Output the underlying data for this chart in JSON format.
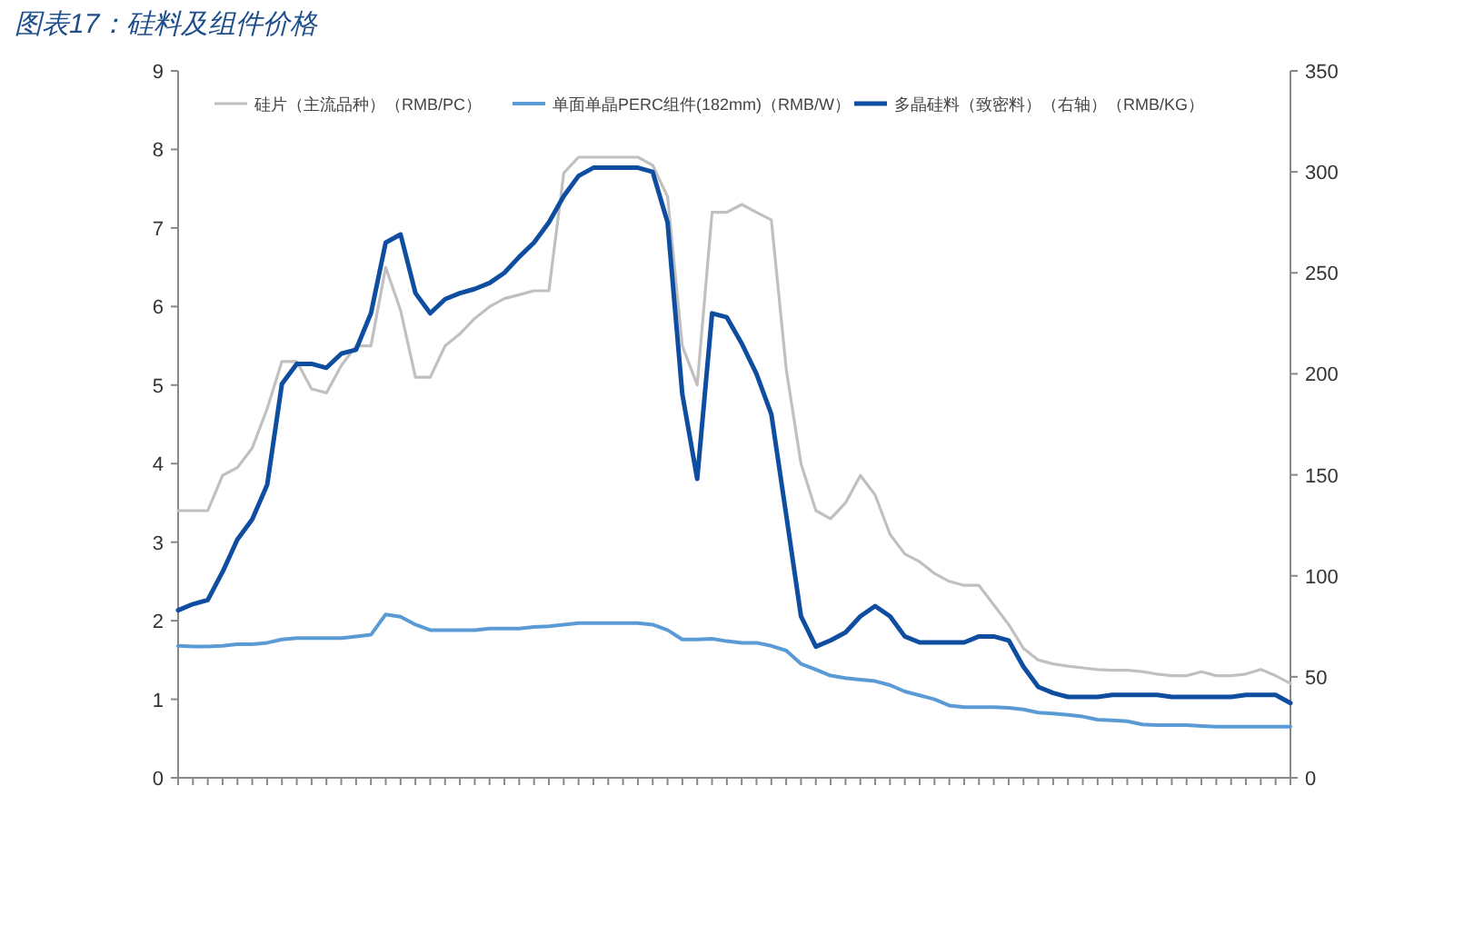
{
  "chart_data": {
    "type": "line",
    "title": "图表17：硅料及组件价格",
    "categories": [
      null,
      null,
      null,
      null,
      null,
      null,
      null,
      null,
      null,
      null,
      null,
      null,
      null,
      null,
      null,
      null,
      null,
      null,
      null,
      null,
      null,
      null,
      null,
      null,
      null,
      null,
      null,
      null,
      null,
      null,
      null,
      null,
      null,
      null,
      null,
      null,
      null,
      null,
      null,
      null,
      null,
      null,
      null,
      null,
      null,
      null,
      null,
      null,
      null,
      null,
      null,
      null,
      null,
      null,
      null,
      null,
      null,
      null,
      null,
      null,
      null,
      null,
      null,
      null,
      null,
      null,
      null,
      null,
      null,
      null,
      null,
      null,
      null,
      null,
      null,
      null
    ],
    "series": [
      {
        "name": "硅片（主流品种）（RMB/PC）",
        "color": "#c0c0c0",
        "values": [
          3.4,
          3.4,
          3.4,
          3.85,
          3.95,
          4.2,
          4.7,
          5.3,
          5.3,
          4.95,
          4.9,
          5.25,
          5.5,
          5.5,
          6.5,
          5.95,
          5.1,
          5.1,
          5.5,
          5.65,
          5.85,
          6.0,
          6.1,
          6.15,
          6.2,
          6.2,
          7.7,
          7.9,
          7.9,
          7.9,
          7.9,
          7.9,
          7.8,
          7.4,
          5.5,
          5.0,
          7.2,
          7.2,
          7.3,
          7.2,
          7.1,
          5.2,
          4.0,
          3.4,
          3.3,
          3.5,
          3.85,
          3.6,
          3.1,
          2.85,
          2.75,
          2.6,
          2.5,
          2.45,
          2.45,
          2.2,
          1.95,
          1.65,
          1.5,
          1.45,
          1.42,
          1.4,
          1.38,
          1.37,
          1.37,
          1.35,
          1.32,
          1.3,
          1.3,
          1.35,
          1.3,
          1.3,
          1.32,
          1.38,
          1.3,
          1.2
        ]
      },
      {
        "name": "单面单晶PERC组件(182mm)（RMB/W）",
        "color": "#5b9bd5",
        "values": [
          1.68,
          1.67,
          1.67,
          1.68,
          1.7,
          1.7,
          1.72,
          1.76,
          1.78,
          1.78,
          1.78,
          1.78,
          1.8,
          1.82,
          2.08,
          2.05,
          1.95,
          1.88,
          1.88,
          1.88,
          1.88,
          1.9,
          1.9,
          1.9,
          1.92,
          1.93,
          1.95,
          1.97,
          1.97,
          1.97,
          1.97,
          1.97,
          1.95,
          1.88,
          1.76,
          1.76,
          1.77,
          1.74,
          1.72,
          1.72,
          1.68,
          1.62,
          1.45,
          1.38,
          1.3,
          1.27,
          1.25,
          1.23,
          1.18,
          1.1,
          1.05,
          1.0,
          0.92,
          0.9,
          0.9,
          0.9,
          0.89,
          0.87,
          0.83,
          0.82,
          0.8,
          0.78,
          0.74,
          0.73,
          0.72,
          0.68,
          0.67,
          0.67,
          0.67,
          0.66,
          0.65,
          0.65,
          0.65,
          0.65,
          0.65,
          0.65
        ]
      },
      {
        "name": "多晶硅料（致密料）（右轴）（RMB/KG）",
        "color": "#0e4d9f",
        "axis": "y2",
        "values": [
          83,
          86,
          88,
          102,
          118,
          128,
          145,
          195,
          205,
          205,
          203,
          210,
          212,
          230,
          265,
          269,
          240,
          230,
          237,
          240,
          242,
          245,
          250,
          258,
          265,
          275,
          288,
          298,
          302,
          302,
          302,
          302,
          300,
          275,
          190,
          148,
          230,
          228,
          215,
          200,
          180,
          130,
          80,
          65,
          68,
          72,
          80,
          85,
          80,
          70,
          67,
          67,
          67,
          67,
          70,
          70,
          68,
          55,
          45,
          42,
          40,
          40,
          40,
          41,
          41,
          41,
          41,
          40,
          40,
          40,
          40,
          40,
          41,
          41,
          41,
          37
        ]
      }
    ],
    "ylim": [
      0,
      9
    ],
    "yticks": [
      0,
      1,
      2,
      3,
      4,
      5,
      6,
      7,
      8,
      9
    ],
    "y2lim": [
      0,
      350
    ],
    "y2ticks": [
      0,
      50,
      100,
      150,
      200,
      250,
      300,
      350
    ],
    "legend": "top"
  }
}
